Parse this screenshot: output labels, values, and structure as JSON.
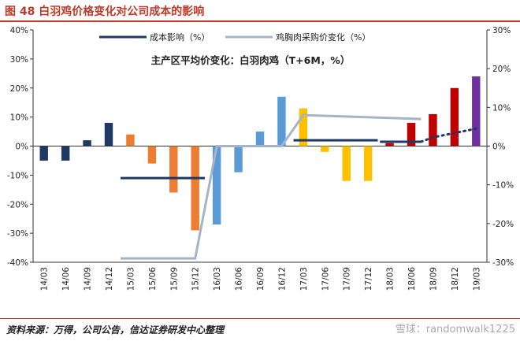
{
  "figure": {
    "title": "图 48  白羽鸡价格变化对公司成本的影响"
  },
  "source": {
    "text": "资料来源：万得，公司公告，信达证券研发中心整理",
    "watermark": "雪球：randomwalk1225"
  },
  "chart_data": {
    "type": "bar",
    "subtitle": "主产区平均价变化：白羽肉鸡（T+6M，%）",
    "categories": [
      "14/03",
      "14/06",
      "14/09",
      "14/12",
      "15/03",
      "15/06",
      "15/09",
      "15/12",
      "16/03",
      "16/06",
      "16/09",
      "16/12",
      "17/03",
      "17/06",
      "17/09",
      "17/12",
      "18/03",
      "18/06",
      "18/09",
      "18/12",
      "19/03"
    ],
    "left_axis": {
      "min": -40,
      "max": 40,
      "step": 10,
      "ticks": [
        "-40%",
        "-30%",
        "-20%",
        "-10%",
        "0%",
        "10%",
        "20%",
        "30%",
        "40%"
      ]
    },
    "right_axis": {
      "min": -30,
      "max": 30,
      "step": 10,
      "ticks": [
        "-30%",
        "-20%",
        "-10%",
        "0%",
        "10%",
        "20%",
        "30%"
      ]
    },
    "bars": {
      "values": [
        -5,
        -5,
        2,
        8,
        4,
        -6,
        -16,
        -29,
        -27,
        -9,
        5,
        17,
        13,
        -2,
        -12,
        -12,
        1,
        8,
        11,
        20,
        24
      ],
      "colors": [
        "#1f3864",
        "#1f3864",
        "#1f3864",
        "#1f3864",
        "#ed7d31",
        "#ed7d31",
        "#ed7d31",
        "#ed7d31",
        "#5b9bd5",
        "#5b9bd5",
        "#5b9bd5",
        "#5b9bd5",
        "#ffc000",
        "#ffc000",
        "#ffc000",
        "#ffc000",
        "#c00000",
        "#c00000",
        "#c00000",
        "#c00000",
        "#7030a0"
      ]
    },
    "series": [
      {
        "name": "成本影响（%）",
        "axis": "left",
        "color": "#1f3864",
        "segments": [
          {
            "from": "15/03",
            "to": "15/12",
            "value": -11
          },
          {
            "from": "17/03",
            "to": "17/12",
            "value": 2
          },
          {
            "from": "18/03",
            "to": "18/06",
            "value": 1.5
          }
        ],
        "dotted": {
          "from": "18/06",
          "to": "19/03",
          "values": [
            1.5,
            3,
            4.5,
            6
          ]
        }
      },
      {
        "name": "鸡胸肉采购价变化（%）",
        "axis": "right",
        "color": "#a6b4c8",
        "x": [
          "15/03",
          "15/12",
          "16/03",
          "16/12",
          "17/03",
          "18/06"
        ],
        "values": [
          -29,
          -29,
          0,
          0,
          8,
          7
        ]
      }
    ],
    "legend": "top-center",
    "grid": false
  }
}
